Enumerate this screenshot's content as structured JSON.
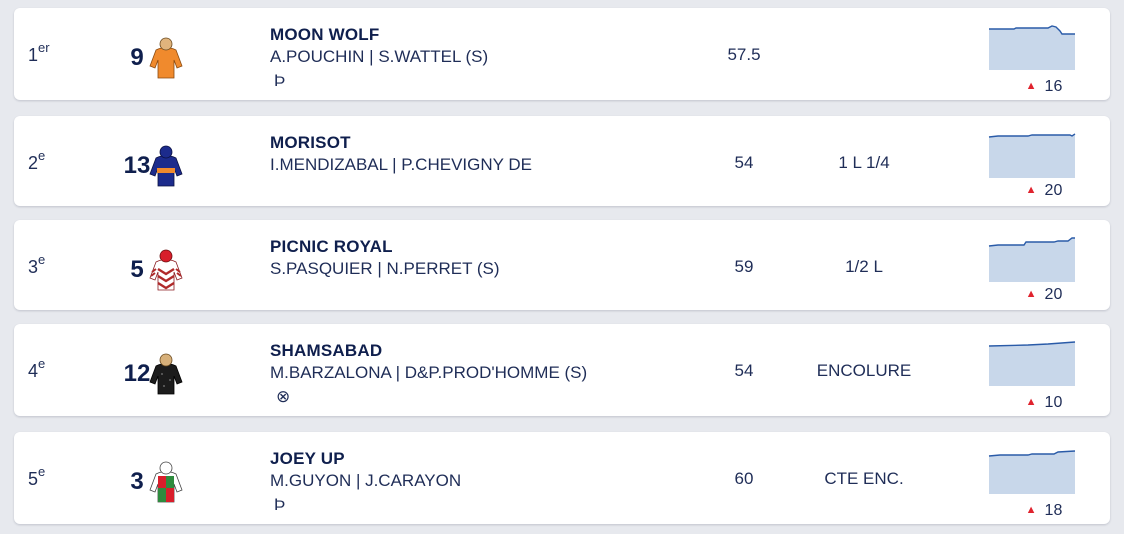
{
  "results": [
    {
      "rank": "1",
      "rank_suffix": "er",
      "number": "9",
      "horse": "MOON WOLF",
      "riders": "A.POUCHIN | S.WATTEL (S)",
      "extra": "Þ",
      "weight": "57.5",
      "gap": "",
      "odds": "16",
      "silk": {
        "body": "#f08a2d",
        "sleeve": "#f08a2d",
        "cap": "#e0b47c",
        "pattern": "plain"
      }
    },
    {
      "rank": "2",
      "rank_suffix": "e",
      "number": "13",
      "horse": "MORISOT",
      "riders": "I.MENDIZABAL | P.CHEVIGNY DE",
      "extra": "",
      "weight": "54",
      "gap": "1 L 1/4",
      "odds": "20",
      "silk": {
        "body": "#1c2b8c",
        "sleeve": "#1c2b8c",
        "cap": "#1c2b8c",
        "pattern": "band"
      }
    },
    {
      "rank": "3",
      "rank_suffix": "e",
      "number": "5",
      "horse": "PICNIC ROYAL",
      "riders": "S.PASQUIER | N.PERRET (S)",
      "extra": "",
      "weight": "59",
      "gap": "1/2 L",
      "odds": "20",
      "silk": {
        "body": "#ffffff",
        "sleeve": "#ffffff",
        "cap": "#d81e2b",
        "pattern": "chevrons"
      }
    },
    {
      "rank": "4",
      "rank_suffix": "e",
      "number": "12",
      "horse": "SHAMSABAD",
      "riders": "M.BARZALONA | D&P.PROD'HOMME (S)",
      "extra": "⊗",
      "weight": "54",
      "gap": "ENCOLURE",
      "odds": "10",
      "silk": {
        "body": "#1c1c1c",
        "sleeve": "#1c1c1c",
        "cap": "#d7b07a",
        "pattern": "plain"
      }
    },
    {
      "rank": "5",
      "rank_suffix": "e",
      "number": "3",
      "horse": "JOEY UP",
      "riders": "M.GUYON | J.CARAYON",
      "extra": "Þ",
      "weight": "60",
      "gap": "CTE ENC.",
      "odds": "18",
      "silk": {
        "body": "#d91e2b",
        "sleeve": "#ffffff",
        "cap": "#ffffff",
        "pattern": "quartered"
      }
    }
  ],
  "colors": {
    "accent": "#0f1f4d",
    "odds_up": "#e0232e",
    "sparkline_line": "#2a5ba8",
    "sparkline_fill": "#c8d7ea"
  },
  "icons": {
    "odds_trend": "triangle-up-icon",
    "silk": "jockey-silk-icon"
  }
}
